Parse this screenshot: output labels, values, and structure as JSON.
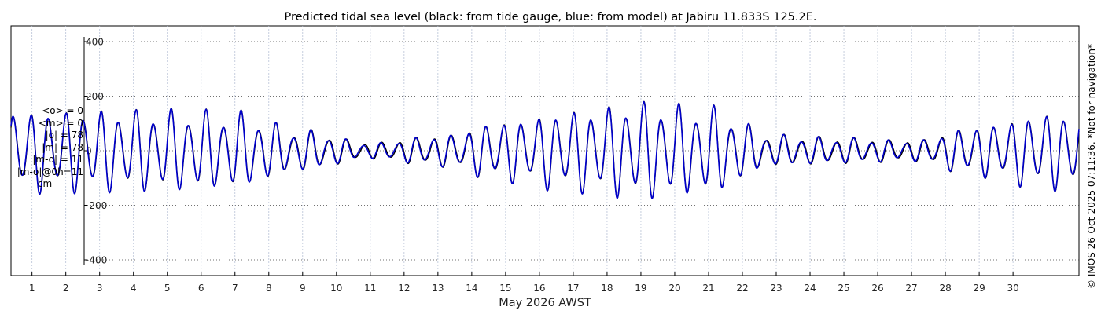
{
  "chart_data": {
    "type": "line",
    "title": "Predicted tidal sea level (black: from tide gauge, blue: from model) at Jabiru 11.833S 125.2E.",
    "xlabel": "May 2026 AWST",
    "ylabel": "",
    "ylim": [
      -400,
      400
    ],
    "yticks": [
      -400,
      -200,
      0,
      200,
      400
    ],
    "x_day_range": [
      0.38,
      31.95
    ],
    "x_ticks": [
      "1",
      "2",
      "3",
      "4",
      "5",
      "6",
      "7",
      "8",
      "9",
      "10",
      "11",
      "12",
      "13",
      "14",
      "15",
      "16",
      "17",
      "18",
      "19",
      "20",
      "21",
      "22",
      "23",
      "24",
      "25",
      "26",
      "27",
      "28",
      "29",
      "30"
    ],
    "grid": true,
    "series": [
      {
        "color": "#000000"
      },
      {
        "color": "#0000cc"
      }
    ],
    "tide_model": {
      "units": "cm",
      "semidiurnal_period_days": 0.5175,
      "diurnal_period_days": 1.0,
      "envelope_days": [
        1,
        3,
        5,
        7,
        9,
        11,
        13,
        15,
        17,
        19,
        21,
        23,
        25,
        27,
        29,
        31
      ],
      "envelope_amplitude_cm": [
        160,
        160,
        160,
        150,
        80,
        30,
        60,
        120,
        160,
        190,
        170,
        60,
        50,
        40,
        100,
        150
      ],
      "observed_vs_model_extra_amplitude_cm": 10
    }
  },
  "stats_panel": {
    "lines": [
      "<o> = 0",
      "<m> = 0",
      "|o| = 78",
      "|m| = 78",
      "|m-o| = 11",
      "|m-o|@0h=11"
    ],
    "unit": "cm"
  },
  "credit": "© IMOS 26-Oct-2025 07:11:36. *Not for navigation*"
}
